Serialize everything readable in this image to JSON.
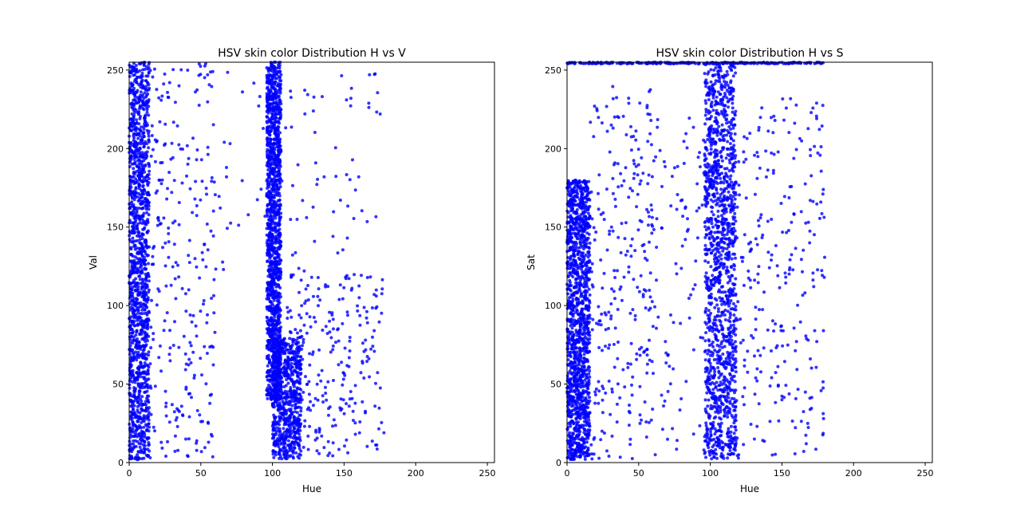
{
  "chart_data": [
    {
      "type": "scatter",
      "title": "HSV skin color Distribution H vs V",
      "xlabel": "Hue",
      "ylabel": "Val",
      "xlim": [
        0,
        255
      ],
      "ylim": [
        0,
        255
      ],
      "xticks": [
        0,
        50,
        100,
        150,
        200,
        250
      ],
      "yticks": [
        0,
        50,
        100,
        150,
        200,
        250
      ],
      "grid": false,
      "marker_color": "#0000ff",
      "clusters": [
        {
          "x_range": [
            0,
            14
          ],
          "y_range": [
            2,
            255
          ],
          "density": "very high"
        },
        {
          "x_range": [
            96,
            106
          ],
          "y_range": [
            40,
            255
          ],
          "density": "very high"
        },
        {
          "x_range": [
            100,
            120
          ],
          "y_range": [
            2,
            80
          ],
          "density": "high"
        },
        {
          "x_range": [
            14,
            60
          ],
          "y_range": [
            2,
            255
          ],
          "density": "medium"
        },
        {
          "x_range": [
            110,
            178
          ],
          "y_range": [
            2,
            120
          ],
          "density": "medium"
        },
        {
          "x_range": [
            60,
            178
          ],
          "y_range": [
            120,
            250
          ],
          "density": "sparse"
        }
      ]
    },
    {
      "type": "scatter",
      "title": "HSV skin color Distribution H vs S",
      "xlabel": "Hue",
      "ylabel": "Sat",
      "xlim": [
        0,
        255
      ],
      "ylim": [
        0,
        255
      ],
      "xticks": [
        0,
        50,
        100,
        150,
        200,
        250
      ],
      "yticks": [
        0,
        50,
        100,
        150,
        200,
        250
      ],
      "grid": false,
      "marker_color": "#0000ff",
      "clusters": [
        {
          "x_range": [
            0,
            16
          ],
          "y_range": [
            2,
            180
          ],
          "density": "very high"
        },
        {
          "x_range": [
            96,
            118
          ],
          "y_range": [
            2,
            255
          ],
          "density": "very high"
        },
        {
          "x_range": [
            16,
            60
          ],
          "y_range": [
            2,
            240
          ],
          "density": "medium"
        },
        {
          "x_range": [
            118,
            180
          ],
          "y_range": [
            2,
            235
          ],
          "density": "medium"
        },
        {
          "x_range": [
            60,
            96
          ],
          "y_range": [
            2,
            220
          ],
          "density": "sparse"
        },
        {
          "x_range": [
            0,
            180
          ],
          "y_range": [
            254,
            255
          ],
          "density": "medium"
        }
      ]
    }
  ]
}
